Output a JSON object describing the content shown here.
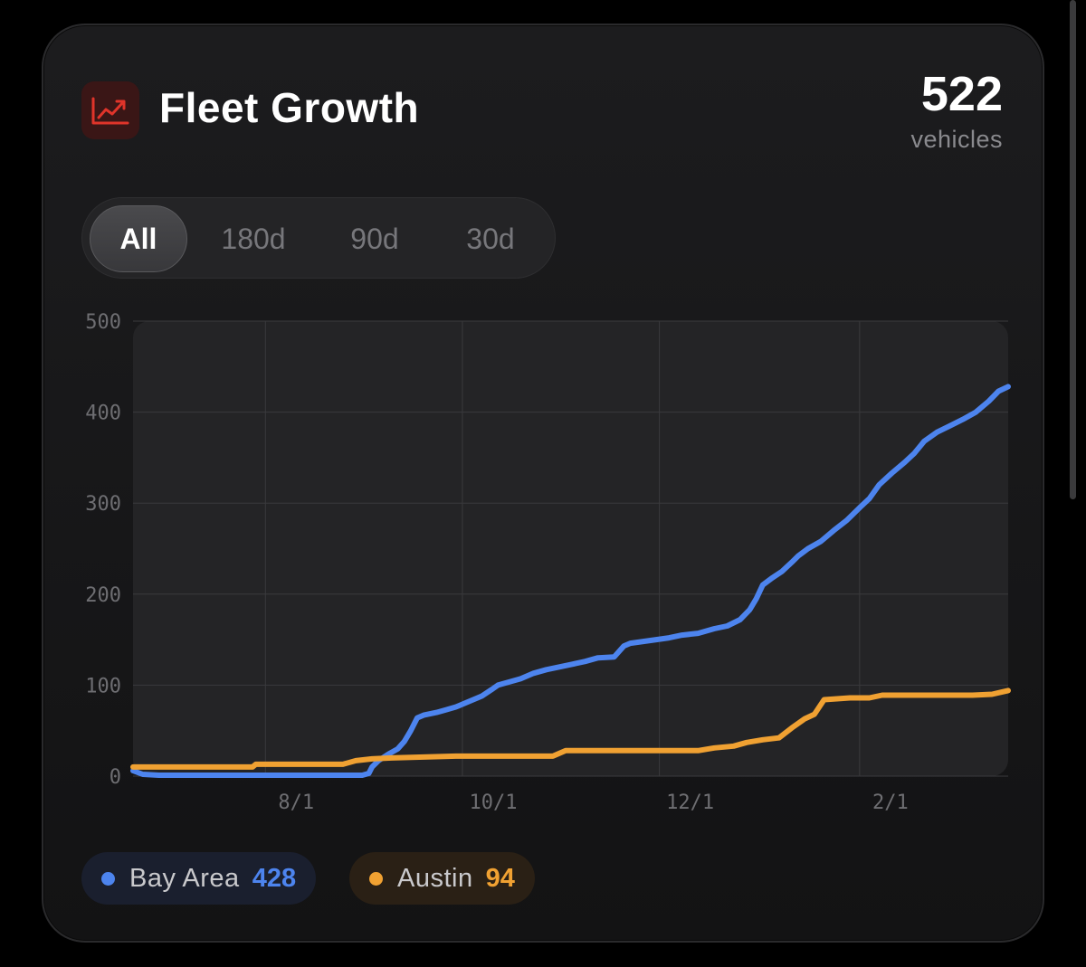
{
  "header": {
    "title": "Fleet Growth",
    "icon": "chart-trending-up-icon",
    "icon_color": "#e0342a"
  },
  "total": {
    "count": "522",
    "unit": "vehicles"
  },
  "range_selector": {
    "options": [
      "All",
      "180d",
      "90d",
      "30d"
    ],
    "selected": "All"
  },
  "legend": [
    {
      "name": "Bay Area",
      "value": "428",
      "color": "#4d84ee"
    },
    {
      "name": "Austin",
      "value": "94",
      "color": "#f0a132"
    }
  ],
  "chart_data": {
    "type": "line",
    "title": "Fleet Growth",
    "xlabel": "",
    "ylabel": "",
    "ylim": [
      0,
      500
    ],
    "yticks": [
      0,
      100,
      200,
      300,
      400,
      500
    ],
    "ytick_labels": [
      "0",
      "100",
      "200",
      "300",
      "400",
      "500"
    ],
    "xlim_days": [
      0,
      271
    ],
    "xticks": [
      {
        "day": 41,
        "label": "8/1"
      },
      {
        "day": 102,
        "label": "10/1"
      },
      {
        "day": 163,
        "label": "12/1"
      },
      {
        "day": 225,
        "label": "2/1"
      }
    ],
    "x_unit": "days since start (start ≈ 6/21)",
    "grid": true,
    "series": [
      {
        "name": "Bay Area",
        "color": "#4d84ee",
        "points": [
          [
            0,
            6
          ],
          [
            3,
            2
          ],
          [
            8,
            1
          ],
          [
            60,
            1
          ],
          [
            71,
            1
          ],
          [
            73,
            3
          ],
          [
            74,
            10
          ],
          [
            76,
            17
          ],
          [
            79,
            24
          ],
          [
            82,
            30
          ],
          [
            84,
            38
          ],
          [
            86,
            50
          ],
          [
            88,
            64
          ],
          [
            90,
            67
          ],
          [
            94,
            70
          ],
          [
            97,
            73
          ],
          [
            100,
            76
          ],
          [
            104,
            82
          ],
          [
            108,
            88
          ],
          [
            111,
            95
          ],
          [
            113,
            100
          ],
          [
            116,
            103
          ],
          [
            120,
            107
          ],
          [
            124,
            113
          ],
          [
            128,
            117
          ],
          [
            132,
            120
          ],
          [
            136,
            123
          ],
          [
            140,
            126
          ],
          [
            144,
            130
          ],
          [
            149,
            131
          ],
          [
            152,
            143
          ],
          [
            154,
            146
          ],
          [
            158,
            148
          ],
          [
            162,
            150
          ],
          [
            166,
            152
          ],
          [
            170,
            155
          ],
          [
            175,
            157
          ],
          [
            180,
            162
          ],
          [
            184,
            165
          ],
          [
            188,
            172
          ],
          [
            191,
            183
          ],
          [
            193,
            195
          ],
          [
            195,
            210
          ],
          [
            198,
            218
          ],
          [
            201,
            225
          ],
          [
            204,
            235
          ],
          [
            206,
            242
          ],
          [
            209,
            250
          ],
          [
            213,
            258
          ],
          [
            217,
            270
          ],
          [
            221,
            281
          ],
          [
            225,
            295
          ],
          [
            228,
            305
          ],
          [
            231,
            320
          ],
          [
            235,
            333
          ],
          [
            239,
            345
          ],
          [
            242,
            355
          ],
          [
            245,
            368
          ],
          [
            249,
            378
          ],
          [
            253,
            385
          ],
          [
            257,
            392
          ],
          [
            261,
            400
          ],
          [
            265,
            412
          ],
          [
            268,
            423
          ],
          [
            271,
            428
          ]
        ]
      },
      {
        "name": "Austin",
        "color": "#f0a132",
        "points": [
          [
            0,
            10
          ],
          [
            37,
            10
          ],
          [
            38,
            13
          ],
          [
            65,
            13
          ],
          [
            69,
            17
          ],
          [
            74,
            19
          ],
          [
            80,
            20
          ],
          [
            90,
            21
          ],
          [
            100,
            22
          ],
          [
            130,
            22
          ],
          [
            134,
            28
          ],
          [
            150,
            28
          ],
          [
            175,
            28
          ],
          [
            180,
            31
          ],
          [
            186,
            33
          ],
          [
            190,
            37
          ],
          [
            195,
            40
          ],
          [
            200,
            42
          ],
          [
            204,
            53
          ],
          [
            208,
            63
          ],
          [
            211,
            68
          ],
          [
            214,
            84
          ],
          [
            218,
            85
          ],
          [
            222,
            86
          ],
          [
            228,
            86
          ],
          [
            232,
            89
          ],
          [
            260,
            89
          ],
          [
            266,
            90
          ],
          [
            271,
            94
          ]
        ]
      }
    ]
  }
}
